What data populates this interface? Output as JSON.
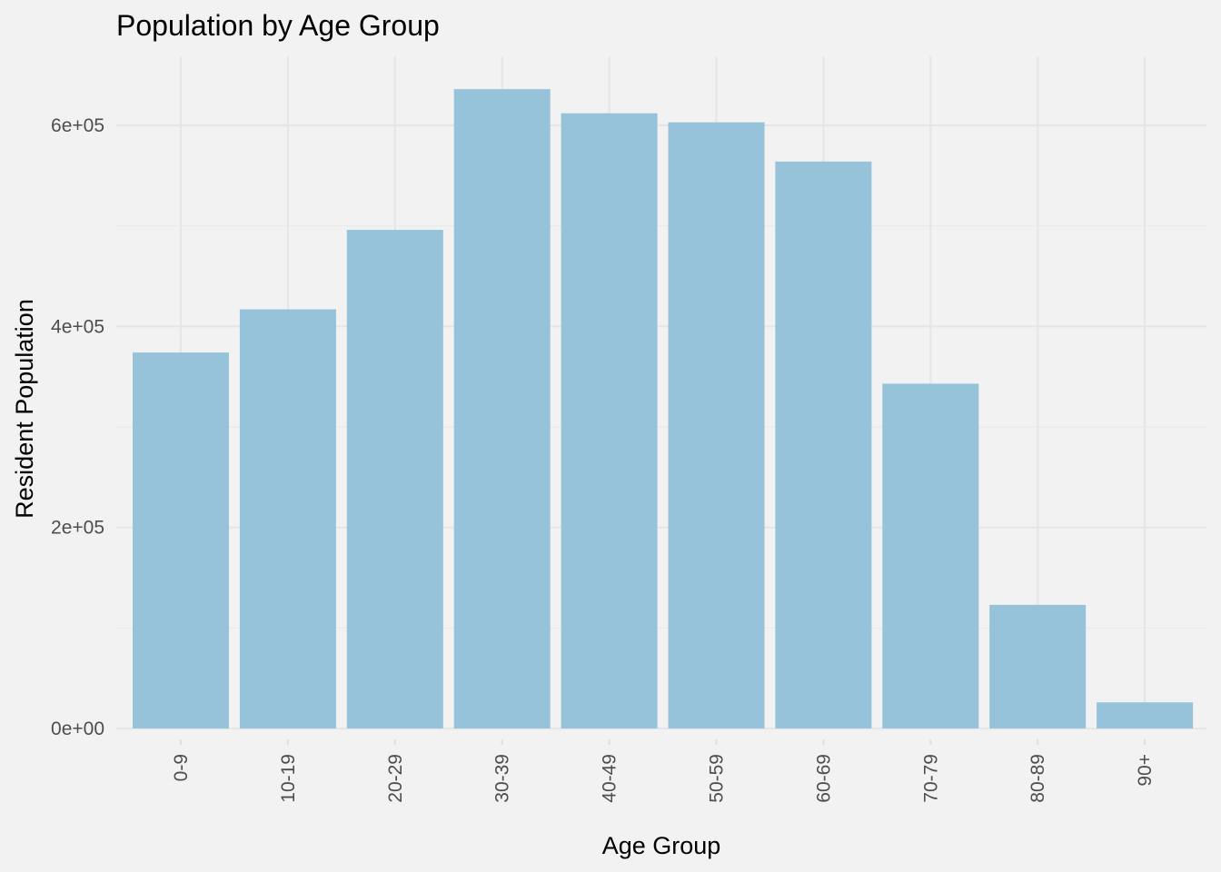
{
  "chart_data": {
    "type": "bar",
    "title": "Population by Age Group",
    "xlabel": "Age Group",
    "ylabel": "Resident Population",
    "categories": [
      "0-9",
      "10-19",
      "20-29",
      "30-39",
      "40-49",
      "50-59",
      "60-69",
      "70-79",
      "80-89",
      "90+"
    ],
    "values": [
      374000,
      417000,
      496000,
      636000,
      612000,
      603000,
      564000,
      343000,
      123000,
      26000
    ],
    "ylim": [
      0,
      670000
    ],
    "yticks": [
      0,
      200000,
      400000,
      600000
    ],
    "ytick_labels": [
      "0e+00",
      "2e+05",
      "4e+05",
      "6e+05"
    ],
    "grid": true,
    "legend": "none",
    "colors": {
      "bar": "#96c2da",
      "background": "#f2f2f2",
      "grid": "#e6e6e6",
      "text": "#000000",
      "tick_text": "#4d4d4d"
    }
  }
}
